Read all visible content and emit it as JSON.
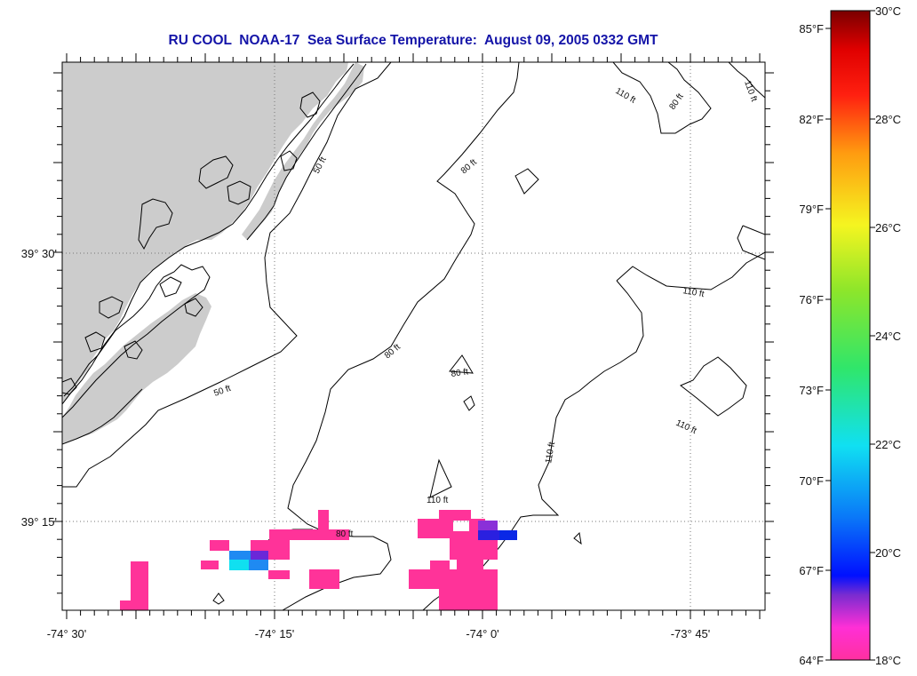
{
  "title": "RU COOL  NOAA-17  Sea Surface Temperature:  August 09, 2005 0332 GMT",
  "axes": {
    "lon_ticks": [
      "-74° 30'",
      "-74° 15'",
      "-74° 0'",
      "-73° 45'"
    ],
    "lat_ticks": [
      "39° 30'",
      "39° 15'"
    ]
  },
  "contour_labels": [
    {
      "id": "c50a",
      "text": "50 ft"
    },
    {
      "id": "c50b",
      "text": "50 ft"
    },
    {
      "id": "c80a",
      "text": "80 ft"
    },
    {
      "id": "c80b",
      "text": "80 ft"
    },
    {
      "id": "c80c",
      "text": "80 ft"
    },
    {
      "id": "c80d",
      "text": "80 ft"
    },
    {
      "id": "c80e",
      "text": "80 ft"
    },
    {
      "id": "c110a",
      "text": "110 ft"
    },
    {
      "id": "c110b",
      "text": "110 ft"
    },
    {
      "id": "c110c",
      "text": "110 ft"
    },
    {
      "id": "c110d",
      "text": "110 ft"
    },
    {
      "id": "c110e",
      "text": "110 ft"
    },
    {
      "id": "c110f",
      "text": "110 ft"
    }
  ],
  "colorbar": {
    "f_labels": [
      "85°F",
      "82°F",
      "79°F",
      "76°F",
      "73°F",
      "70°F",
      "67°F",
      "64°F"
    ],
    "c_labels": [
      "30°C",
      "28°C",
      "26°C",
      "24°C",
      "22°C",
      "20°C",
      "18°C"
    ]
  },
  "colors": {
    "land": "#cccccc",
    "sst_pink": "#ff3399",
    "sst_blue": "#0a28e6",
    "sst_purple": "#6a28d8",
    "sst_cyan": "#10e0f0",
    "sst_azure": "#1f8af2",
    "title": "#1414a8"
  }
}
